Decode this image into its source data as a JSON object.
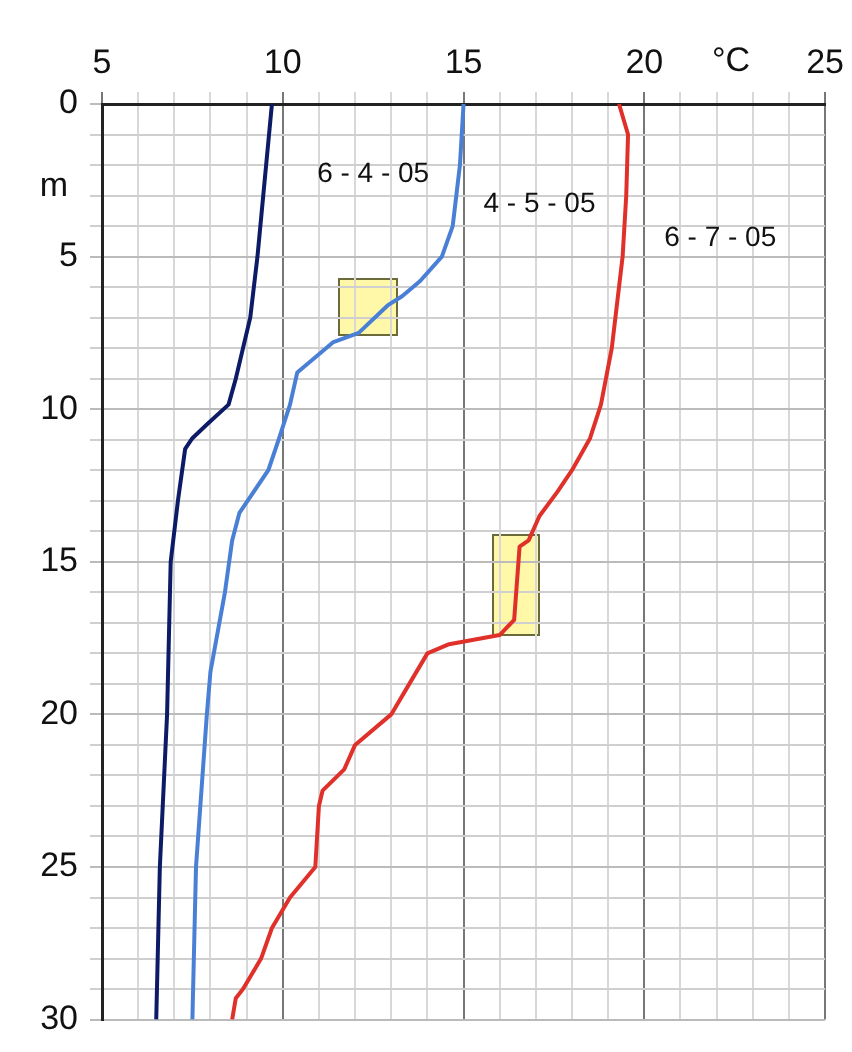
{
  "chart_data": {
    "type": "line",
    "xlabel": "°C",
    "ylabel": "m",
    "xlim": [
      5,
      25
    ],
    "ylim": [
      30,
      0
    ],
    "xticks": [
      5,
      {
        "value": 6,
        "label": null
      },
      {
        "value": 7,
        "label": null
      },
      {
        "value": 8,
        "label": null
      },
      {
        "value": 9,
        "label": null
      },
      10,
      {
        "value": 11,
        "label": null
      },
      {
        "value": 12,
        "label": null
      },
      {
        "value": 13,
        "label": null
      },
      {
        "value": 14,
        "label": null
      },
      15,
      {
        "value": 16,
        "label": null
      },
      {
        "value": 17,
        "label": null
      },
      {
        "value": 18,
        "label": null
      },
      {
        "value": 19,
        "label": null
      },
      20,
      {
        "value": 21,
        "label": null
      },
      {
        "value": 22,
        "label": null
      },
      {
        "value": 23,
        "label": null
      },
      {
        "value": 24,
        "label": null
      },
      25
    ],
    "yticks": [
      0,
      {
        "value": 1,
        "label": null
      },
      {
        "value": 2,
        "label": null
      },
      {
        "value": 3,
        "label": null
      },
      {
        "value": 4,
        "label": null
      },
      5,
      {
        "value": 6,
        "label": null
      },
      {
        "value": 7,
        "label": null
      },
      {
        "value": 8,
        "label": null
      },
      {
        "value": 9,
        "label": null
      },
      10,
      {
        "value": 11,
        "label": null
      },
      {
        "value": 12,
        "label": null
      },
      {
        "value": 13,
        "label": null
      },
      {
        "value": 14,
        "label": null
      },
      15,
      {
        "value": 16,
        "label": null
      },
      {
        "value": 17,
        "label": null
      },
      {
        "value": 18,
        "label": null
      },
      {
        "value": 19,
        "label": null
      },
      20,
      {
        "value": 21,
        "label": null
      },
      {
        "value": 22,
        "label": null
      },
      {
        "value": 23,
        "label": null
      },
      {
        "value": 24,
        "label": null
      },
      25,
      {
        "value": 26,
        "label": null
      },
      {
        "value": 27,
        "label": null
      },
      {
        "value": 28,
        "label": null
      },
      {
        "value": 29,
        "label": null
      },
      30
    ],
    "grid": true,
    "legend": false,
    "marker": "none",
    "line_style": "solid",
    "series": [
      {
        "name": "6 - 4 - 05",
        "color": "#0d1a66",
        "x": [
          9.7,
          9.5,
          9.3,
          9.1,
          8.9,
          8.7,
          8.5,
          7.9,
          7.5,
          7.3,
          7.1,
          6.9,
          6.8,
          6.6,
          6.5
        ],
        "values": [
          0,
          2.5,
          5,
          7,
          8,
          9,
          9.85,
          10.5,
          10.95,
          11.3,
          13,
          15,
          20,
          25,
          30
        ]
      },
      {
        "name": "4 - 5 - 05",
        "color": "#4a7fd6",
        "x": [
          15,
          14.9,
          14.7,
          14.4,
          13.8,
          13.3,
          12.9,
          12.1,
          11.4,
          11,
          10.4,
          10.2,
          9.9,
          9.6,
          8.8,
          8.6,
          8.4,
          8,
          7.9,
          7.6,
          7.5
        ],
        "values": [
          0,
          2,
          4,
          5,
          5.8,
          6.3,
          6.6,
          7.5,
          7.8,
          8.2,
          8.8,
          9.85,
          10.95,
          12,
          13.4,
          14.3,
          16,
          18.6,
          20,
          25,
          30
        ]
      },
      {
        "name": "6 - 7 - 05",
        "color": "#e0302a",
        "x": [
          19.3,
          19.55,
          19.5,
          19.4,
          19.1,
          18.8,
          18.5,
          18,
          17.6,
          17.1,
          16.8,
          16.55,
          16.4,
          16,
          14.6,
          14,
          13.5,
          13,
          12,
          11.7,
          11.1,
          11,
          10.9,
          10.2,
          9.7,
          9.4,
          8.9,
          8.7,
          8.6
        ],
        "values": [
          0,
          1,
          3,
          5,
          8,
          9.85,
          10.95,
          12,
          12.7,
          13.5,
          14.3,
          14.5,
          16.9,
          17.4,
          17.7,
          18,
          19,
          20,
          21,
          21.8,
          22.5,
          23,
          25,
          26,
          27,
          28,
          29,
          29.3,
          30
        ]
      }
    ]
  }
}
